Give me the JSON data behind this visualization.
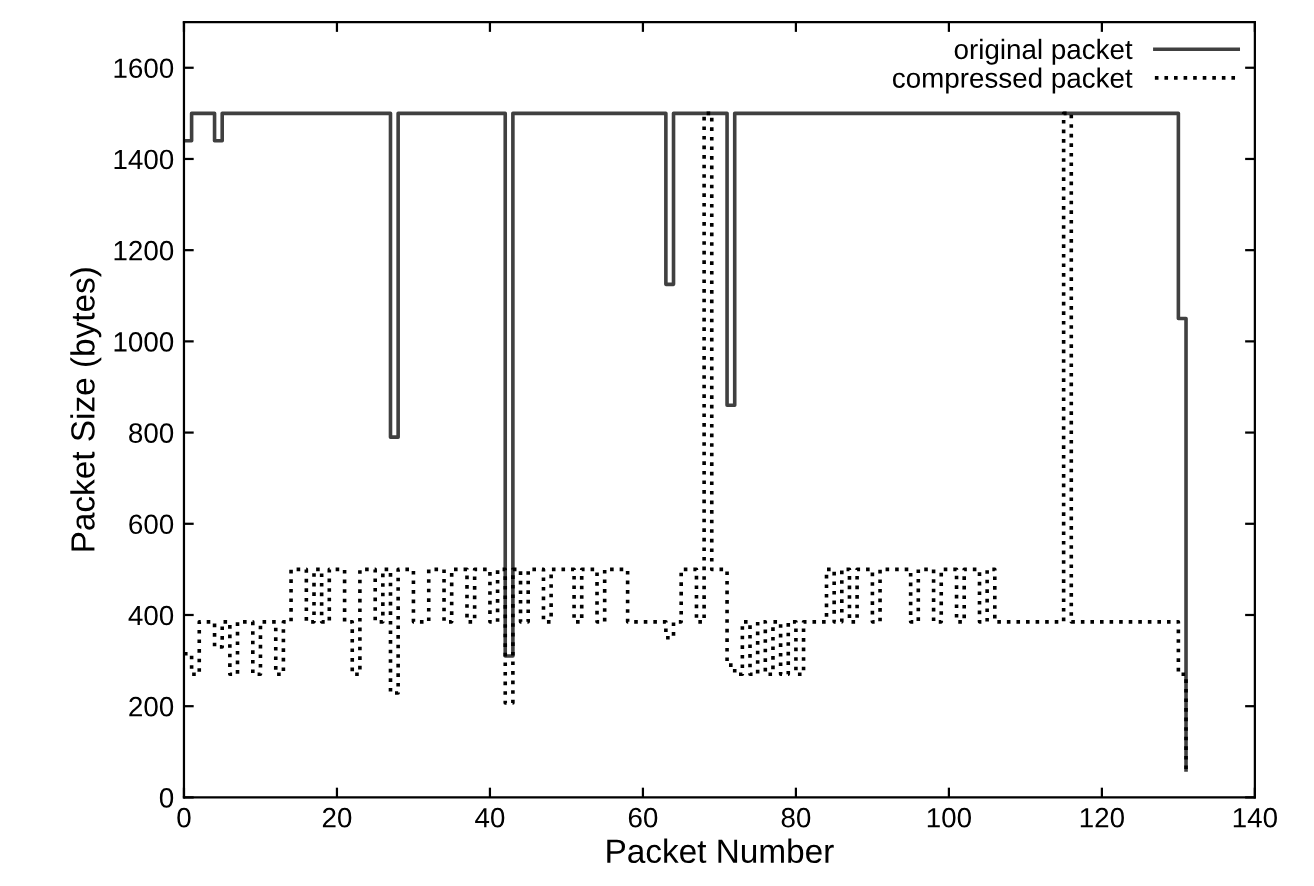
{
  "chart_data": {
    "type": "step",
    "xlabel": "Packet Number",
    "ylabel": "Packet Size (bytes)",
    "x": [
      0,
      1,
      2,
      3,
      4,
      5,
      6,
      7,
      8,
      9,
      10,
      11,
      12,
      13,
      14,
      15,
      16,
      17,
      18,
      19,
      20,
      21,
      22,
      23,
      24,
      25,
      26,
      27,
      28,
      29,
      30,
      31,
      32,
      33,
      34,
      35,
      36,
      37,
      38,
      39,
      40,
      41,
      42,
      43,
      44,
      45,
      46,
      47,
      48,
      49,
      50,
      51,
      52,
      53,
      54,
      55,
      56,
      57,
      58,
      59,
      60,
      61,
      62,
      63,
      64,
      65,
      66,
      67,
      68,
      69,
      70,
      71,
      72,
      73,
      74,
      75,
      76,
      77,
      78,
      79,
      80,
      81,
      82,
      83,
      84,
      85,
      86,
      87,
      88,
      89,
      90,
      91,
      92,
      93,
      94,
      95,
      96,
      97,
      98,
      99,
      100,
      101,
      102,
      103,
      104,
      105,
      106,
      107,
      108,
      109,
      110,
      111,
      112,
      113,
      114,
      115,
      116,
      117,
      118,
      119,
      120,
      121,
      122,
      123,
      124,
      125,
      126,
      127,
      128,
      129,
      130,
      131
    ],
    "series": [
      {
        "name": "original packet",
        "color": "#404040",
        "line_style": "solid",
        "values": [
          1440,
          1500,
          1500,
          1500,
          1440,
          1500,
          1500,
          1500,
          1500,
          1500,
          1500,
          1500,
          1500,
          1500,
          1500,
          1500,
          1500,
          1500,
          1500,
          1500,
          1500,
          1500,
          1500,
          1500,
          1500,
          1500,
          1500,
          790,
          1500,
          1500,
          1500,
          1500,
          1500,
          1500,
          1500,
          1500,
          1500,
          1500,
          1500,
          1500,
          1500,
          1500,
          310,
          1500,
          1500,
          1500,
          1500,
          1500,
          1500,
          1500,
          1500,
          1500,
          1500,
          1500,
          1500,
          1500,
          1500,
          1500,
          1500,
          1500,
          1500,
          1500,
          1500,
          1125,
          1500,
          1500,
          1500,
          1500,
          1500,
          1500,
          1500,
          860,
          1500,
          1500,
          1500,
          1500,
          1500,
          1500,
          1500,
          1500,
          1500,
          1500,
          1500,
          1500,
          1500,
          1500,
          1500,
          1500,
          1500,
          1500,
          1500,
          1500,
          1500,
          1500,
          1500,
          1500,
          1500,
          1500,
          1500,
          1500,
          1500,
          1500,
          1500,
          1500,
          1500,
          1500,
          1500,
          1500,
          1500,
          1500,
          1500,
          1500,
          1500,
          1500,
          1500,
          1500,
          1500,
          1500,
          1500,
          1500,
          1500,
          1500,
          1500,
          1500,
          1500,
          1500,
          1500,
          1500,
          1500,
          1500,
          1050,
          60
        ]
      },
      {
        "name": "compressed packet",
        "color": "#000000",
        "line_style": "dotted",
        "values": [
          315,
          270,
          385,
          385,
          330,
          385,
          270,
          385,
          385,
          270,
          385,
          385,
          270,
          385,
          500,
          500,
          385,
          500,
          385,
          500,
          500,
          385,
          270,
          500,
          500,
          385,
          500,
          229,
          500,
          500,
          385,
          385,
          500,
          500,
          385,
          500,
          500,
          385,
          500,
          500,
          385,
          500,
          207,
          500,
          385,
          500,
          500,
          385,
          500,
          500,
          500,
          385,
          500,
          500,
          385,
          500,
          500,
          500,
          385,
          385,
          385,
          385,
          385,
          350,
          385,
          500,
          500,
          385,
          1500,
          500,
          500,
          290,
          270,
          385,
          270,
          385,
          270,
          385,
          270,
          385,
          270,
          385,
          385,
          385,
          500,
          385,
          500,
          385,
          500,
          500,
          385,
          500,
          500,
          500,
          500,
          385,
          500,
          500,
          385,
          500,
          500,
          385,
          500,
          500,
          385,
          500,
          385,
          385,
          385,
          385,
          385,
          385,
          385,
          385,
          385,
          1500,
          385,
          385,
          385,
          385,
          385,
          385,
          385,
          385,
          385,
          385,
          385,
          385,
          385,
          385,
          270,
          60
        ]
      }
    ],
    "xlim": [
      0,
      140
    ],
    "xticks": [
      0,
      20,
      40,
      60,
      80,
      100,
      120,
      140
    ],
    "ylim": [
      0,
      1700
    ],
    "yticks": [
      0,
      200,
      400,
      600,
      800,
      1000,
      1200,
      1400,
      1600
    ],
    "legend": "top right",
    "grid": false
  }
}
